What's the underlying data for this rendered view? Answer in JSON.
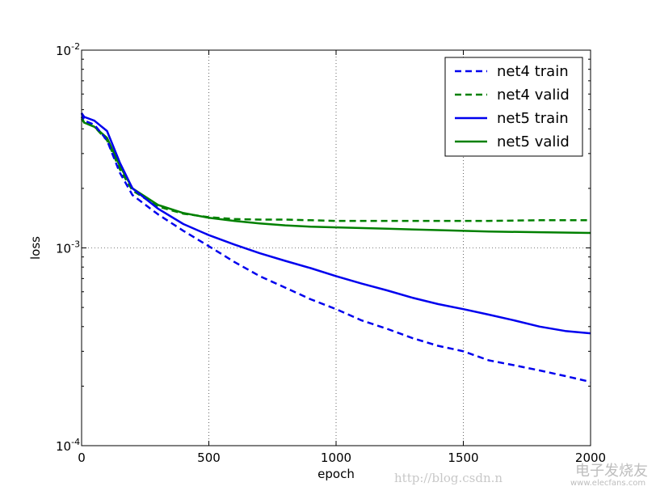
{
  "chart_data": {
    "type": "line",
    "xlabel": "epoch",
    "ylabel": "loss",
    "xlim": [
      0,
      2000
    ],
    "ylim_log10": [
      -4,
      -2
    ],
    "yscale": "log",
    "grid": true,
    "legend_position": "top-right",
    "x_ticks": [
      0,
      500,
      1000,
      1500,
      2000
    ],
    "y_ticks": [
      {
        "value_log10": -2,
        "base": "10",
        "exp": "-2"
      },
      {
        "value_log10": -3,
        "base": "10",
        "exp": "-3"
      },
      {
        "value_log10": -4,
        "base": "10",
        "exp": "-4"
      }
    ],
    "series": [
      {
        "name": "net4 train",
        "color": "#0000ee",
        "dash": "dashed",
        "x": [
          0,
          10,
          50,
          100,
          150,
          200,
          300,
          400,
          500,
          600,
          700,
          800,
          900,
          1000,
          1100,
          1200,
          1300,
          1400,
          1500,
          1600,
          1700,
          1800,
          1900,
          2000
        ],
        "y": [
          0.0048,
          0.0044,
          0.0042,
          0.0035,
          0.0024,
          0.00185,
          0.00148,
          0.00122,
          0.00102,
          0.00085,
          0.00072,
          0.00063,
          0.00055,
          0.00049,
          0.00043,
          0.00039,
          0.00035,
          0.00032,
          0.0003,
          0.00027,
          0.000255,
          0.00024,
          0.000225,
          0.00021
        ]
      },
      {
        "name": "net4 valid",
        "color": "#008000",
        "dash": "dashed",
        "x": [
          0,
          10,
          50,
          100,
          150,
          200,
          300,
          400,
          500,
          600,
          700,
          800,
          900,
          1000,
          1200,
          1400,
          1600,
          1800,
          2000
        ],
        "y": [
          0.0046,
          0.0043,
          0.0041,
          0.0035,
          0.0025,
          0.00195,
          0.00162,
          0.00149,
          0.00143,
          0.0014,
          0.00139,
          0.00139,
          0.00138,
          0.00137,
          0.00137,
          0.00137,
          0.00137,
          0.00138,
          0.00138
        ]
      },
      {
        "name": "net5 train",
        "color": "#0000ee",
        "dash": "solid",
        "x": [
          0,
          10,
          50,
          100,
          150,
          200,
          300,
          400,
          500,
          600,
          700,
          800,
          900,
          1000,
          1100,
          1200,
          1300,
          1400,
          1500,
          1600,
          1700,
          1800,
          1900,
          2000
        ],
        "y": [
          0.0048,
          0.0046,
          0.0044,
          0.0039,
          0.0027,
          0.002,
          0.00158,
          0.00132,
          0.00116,
          0.00104,
          0.00094,
          0.00086,
          0.00079,
          0.00072,
          0.00066,
          0.00061,
          0.00056,
          0.00052,
          0.00049,
          0.00046,
          0.00043,
          0.0004,
          0.00038,
          0.00037
        ]
      },
      {
        "name": "net5 valid",
        "color": "#008000",
        "dash": "solid",
        "x": [
          0,
          10,
          50,
          100,
          150,
          200,
          300,
          400,
          500,
          600,
          700,
          800,
          900,
          1000,
          1200,
          1400,
          1600,
          1800,
          2000
        ],
        "y": [
          0.0045,
          0.0043,
          0.0041,
          0.0036,
          0.0026,
          0.002,
          0.00165,
          0.0015,
          0.00142,
          0.00137,
          0.00133,
          0.0013,
          0.00128,
          0.00127,
          0.00125,
          0.00123,
          0.00121,
          0.0012,
          0.00119
        ]
      }
    ]
  },
  "watermark": {
    "url": "http://blog.csdn.n",
    "logo_text": "电子发烧友",
    "logo_url": "www.elecfans.com"
  }
}
